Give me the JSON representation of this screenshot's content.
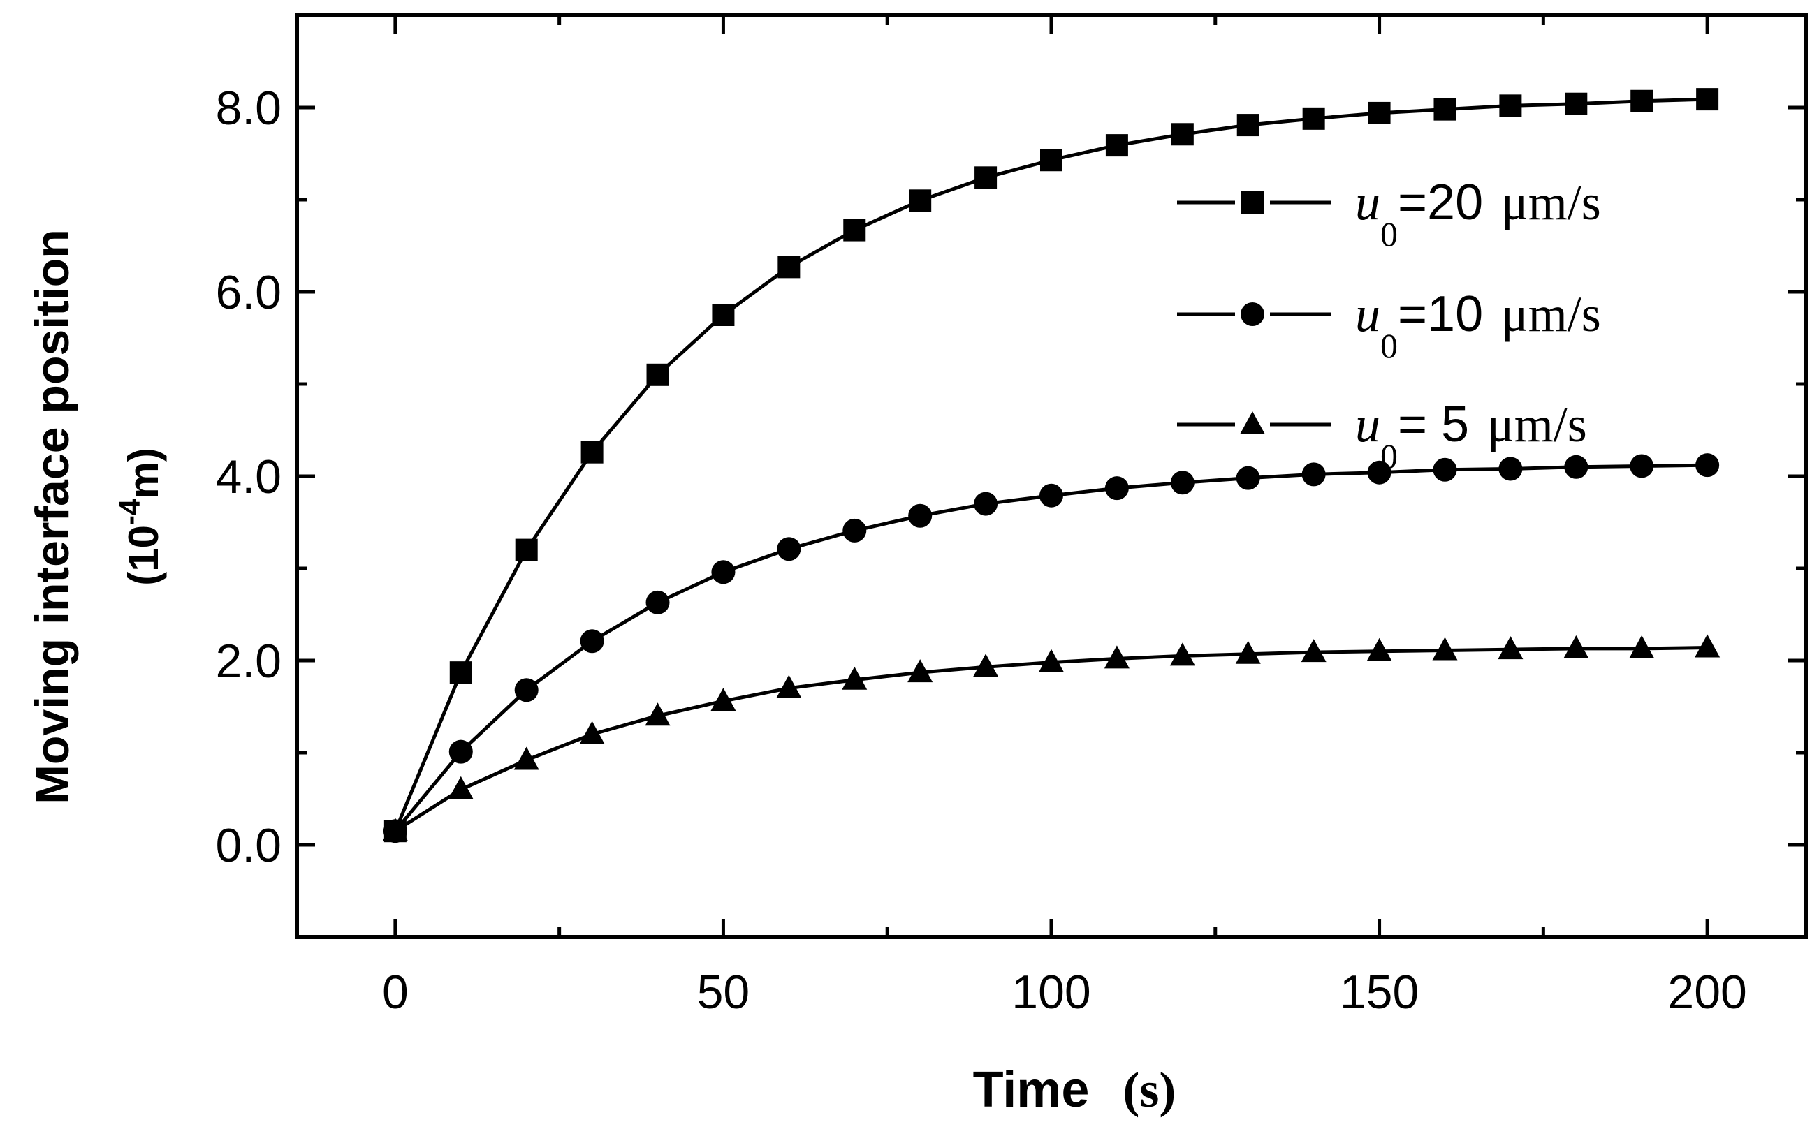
{
  "chart_data": {
    "type": "line",
    "xlabel": "Time",
    "xlabel_unit": "(s)",
    "ylabel": "Moving interface position",
    "ylabel_unit_open": "(10",
    "ylabel_unit_exp": "-4",
    "ylabel_unit_close": "m)",
    "xlim": [
      -15,
      215
    ],
    "ylim": [
      -1.0,
      9.0
    ],
    "xticks": [
      0,
      50,
      100,
      150,
      200
    ],
    "xtick_labels": [
      "0",
      "50",
      "100",
      "150",
      "200"
    ],
    "yticks": [
      0.0,
      2.0,
      4.0,
      6.0,
      8.0
    ],
    "ytick_labels": [
      "0.0",
      "2.0",
      "4.0",
      "6.0",
      "8.0"
    ],
    "grid": false,
    "legend_position": "top-right",
    "x": [
      0,
      10,
      20,
      30,
      40,
      50,
      60,
      70,
      80,
      90,
      100,
      110,
      120,
      130,
      140,
      150,
      160,
      170,
      180,
      190,
      200
    ],
    "series": [
      {
        "name": "u0=20 μm/s",
        "legend_var": "u",
        "legend_sub": "0",
        "legend_eq": "=20",
        "legend_unit": "μm/s",
        "marker": "square",
        "values": [
          0.15,
          1.87,
          3.2,
          4.26,
          5.1,
          5.75,
          6.27,
          6.67,
          6.99,
          7.24,
          7.43,
          7.59,
          7.71,
          7.81,
          7.88,
          7.94,
          7.98,
          8.02,
          8.04,
          8.07,
          8.09
        ]
      },
      {
        "name": "u0=10 μm/s",
        "legend_var": "u",
        "legend_sub": "0",
        "legend_eq": "=10",
        "legend_unit": "μm/s",
        "marker": "circle",
        "values": [
          0.15,
          1.01,
          1.68,
          2.21,
          2.63,
          2.96,
          3.21,
          3.41,
          3.57,
          3.7,
          3.79,
          3.87,
          3.93,
          3.98,
          4.02,
          4.04,
          4.07,
          4.08,
          4.1,
          4.11,
          4.12
        ]
      },
      {
        "name": "u0=5 μm/s",
        "legend_var": "u",
        "legend_sub": "0",
        "legend_eq": "= 5",
        "legend_unit": "μm/s",
        "marker": "triangle",
        "values": [
          0.15,
          0.6,
          0.92,
          1.2,
          1.4,
          1.56,
          1.7,
          1.79,
          1.87,
          1.93,
          1.98,
          2.02,
          2.05,
          2.07,
          2.09,
          2.1,
          2.11,
          2.12,
          2.13,
          2.13,
          2.14
        ]
      }
    ]
  }
}
